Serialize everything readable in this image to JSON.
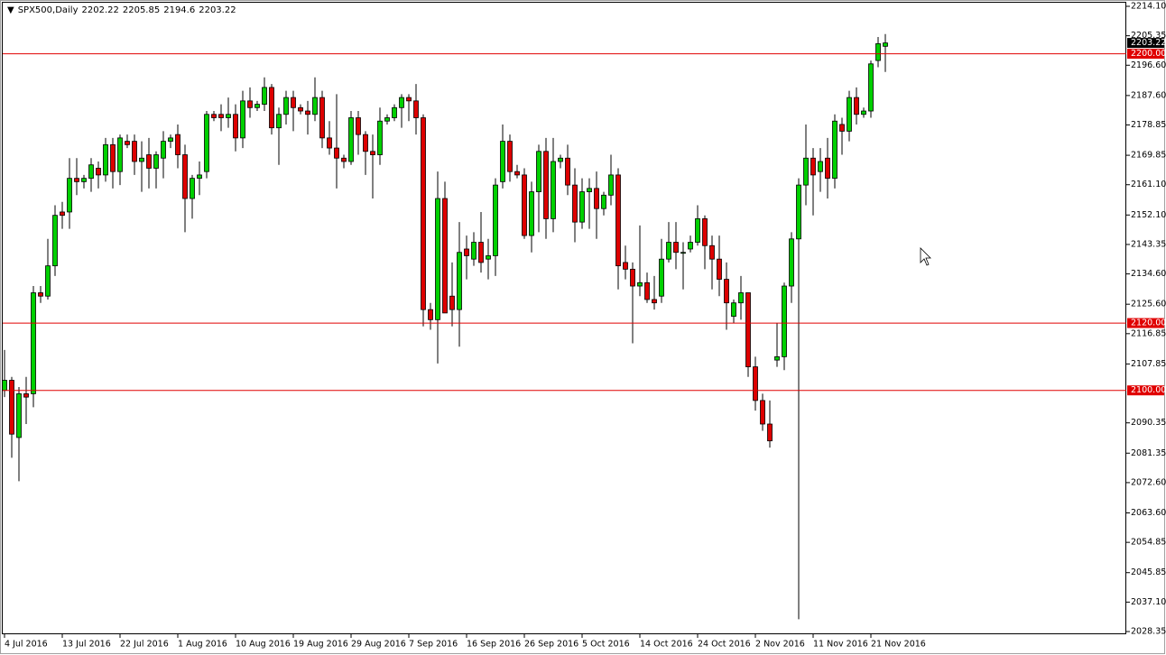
{
  "chart_data": {
    "type": "candlestick",
    "symbol": "SPX500,Daily",
    "categories": [
      "4 Jul 2016",
      null,
      null,
      null,
      null,
      null,
      null,
      null,
      "13 Jul 2016",
      null,
      null,
      null,
      null,
      null,
      null,
      null,
      "22 Jul 2016",
      null,
      null,
      null,
      null,
      null,
      null,
      null,
      "1 Aug 2016",
      null,
      null,
      null,
      null,
      null,
      null,
      null,
      "10 Aug 2016",
      null,
      null,
      null,
      null,
      null,
      null,
      null,
      "19 Aug 2016",
      null,
      null,
      null,
      null,
      null,
      null,
      null,
      "29 Aug 2016",
      null,
      null,
      null,
      null,
      null,
      null,
      null,
      "7 Sep 2016",
      null,
      null,
      null,
      null,
      null,
      null,
      null,
      "16 Sep 2016",
      null,
      null,
      null,
      null,
      null,
      null,
      null,
      "26 Sep 2016",
      null,
      null,
      null,
      null,
      null,
      null,
      null,
      "5 Oct 2016",
      null,
      null,
      null,
      null,
      null,
      null,
      null,
      "14 Oct 2016",
      null,
      null,
      null,
      null,
      null,
      null,
      null,
      "24 Oct 2016",
      null,
      null,
      null,
      null,
      null,
      null,
      null,
      "2 Nov 2016",
      null,
      null,
      null,
      null,
      null,
      null,
      null,
      "11 Nov 2016",
      null,
      null,
      null,
      null,
      null,
      null,
      null,
      "21 Nov 2016",
      null,
      null
    ],
    "open": [
      2100,
      2103,
      2086,
      2099,
      2099,
      2129,
      2128,
      2137,
      2153,
      2153,
      2163,
      2162,
      2163,
      2166,
      2164,
      2173,
      2165,
      2174,
      2174,
      2168,
      2170,
      2166,
      2169,
      2174,
      2176,
      2170,
      2157,
      2163,
      2165,
      2182,
      2182,
      2181,
      2182,
      2175,
      2186,
      2184,
      2185,
      2190,
      2178,
      2182,
      2187,
      2184,
      2183,
      2182,
      2187,
      2175,
      2172,
      2169,
      2168,
      2181,
      2176,
      2171,
      2170,
      2180,
      2181,
      2184,
      2187,
      2186,
      2181,
      2124,
      2121,
      2157,
      2128,
      2124,
      2142,
      2139,
      2144,
      2139,
      2140,
      2162,
      2174,
      2165,
      2164,
      2146,
      2159,
      2171,
      2151,
      2168,
      2169,
      2161,
      2150,
      2159,
      2160,
      2154,
      2158,
      2164,
      2138,
      2136,
      2131,
      2132,
      2127,
      2128,
      2139,
      2144,
      2141,
      2142,
      2144,
      2151,
      2143,
      2139,
      2133,
      2122,
      2126,
      2129,
      2107,
      2097,
      2090,
      2109,
      2110,
      2131,
      2145,
      2161,
      2169,
      2165,
      2169,
      2163,
      2179,
      2177,
      2187,
      2182,
      2183,
      2198,
      2202.22
    ],
    "high": [
      2112,
      2104,
      2101,
      2104,
      2131,
      2131,
      2145,
      2155,
      2156,
      2169,
      2169,
      2164,
      2169,
      2168,
      2175,
      2175,
      2176,
      2176,
      2176,
      2174,
      2175,
      2171,
      2177,
      2176,
      2179,
      2173,
      2164,
      2168,
      2183,
      2183,
      2185,
      2187,
      2185,
      2189,
      2190,
      2186,
      2193,
      2191,
      2184,
      2189,
      2189,
      2185,
      2186,
      2193,
      2189,
      2180,
      2188,
      2170,
      2183,
      2183,
      2177,
      2176,
      2184,
      2182,
      2185,
      2188,
      2188,
      2191,
      2182,
      2126,
      2165,
      2162,
      2138,
      2150,
      2146,
      2147,
      2153,
      2145,
      2163,
      2179,
      2176,
      2167,
      2166,
      2162,
      2173,
      2175,
      2175,
      2170,
      2173,
      2166,
      2163,
      2163,
      2165,
      2159,
      2170,
      2166,
      2143,
      2138,
      2149,
      2135,
      2134,
      2145,
      2150,
      2150,
      2144,
      2146,
      2155,
      2152,
      2146,
      2146,
      2138,
      2127,
      2134,
      2129,
      2110,
      2099,
      2097,
      2120,
      2132,
      2147,
      2163,
      2179,
      2172,
      2172,
      2175,
      2182,
      2181,
      2189,
      2190,
      2184,
      2198,
      2205,
      2205.85
    ],
    "low": [
      2098,
      2080,
      2073,
      2090,
      2095,
      2126,
      2127,
      2134,
      2148,
      2148,
      2158,
      2160,
      2159,
      2160,
      2162,
      2160,
      2161,
      2172,
      2164,
      2159,
      2160,
      2160,
      2163,
      2172,
      2166,
      2147,
      2151,
      2158,
      2163,
      2180,
      2177,
      2178,
      2171,
      2172,
      2181,
      2183,
      2183,
      2176,
      2167,
      2179,
      2177,
      2182,
      2176,
      2180,
      2172,
      2170,
      2160,
      2166,
      2167,
      2170,
      2164,
      2157,
      2167,
      2179,
      2180,
      2178,
      2180,
      2176,
      2119,
      2118,
      2108,
      2123,
      2119,
      2113,
      2133,
      2137,
      2135,
      2133,
      2134,
      2160,
      2162,
      2163,
      2145,
      2141,
      2147,
      2145,
      2147,
      2166,
      2158,
      2144,
      2148,
      2148,
      2145,
      2152,
      2155,
      2130,
      2133,
      2114,
      2128,
      2126,
      2124,
      2126,
      2138,
      2136,
      2130,
      2141,
      2143,
      2136,
      2130,
      2128,
      2118,
      2120,
      2121,
      2104,
      2094,
      2088,
      2083,
      2107,
      2106,
      2126,
      2032,
      2155,
      2152,
      2159,
      2157,
      2160,
      2170,
      2174,
      2179,
      2181,
      2181,
      2196,
      2194.6
    ],
    "close": [
      2103,
      2087,
      2099,
      2098,
      2129,
      2128,
      2137,
      2152,
      2152,
      2163,
      2162,
      2163,
      2167,
      2164,
      2173,
      2165,
      2175,
      2173,
      2168,
      2169,
      2166,
      2170,
      2174,
      2175,
      2170,
      2157,
      2163,
      2164,
      2182,
      2181,
      2181,
      2182,
      2175,
      2186,
      2184,
      2185,
      2190,
      2178,
      2182,
      2187,
      2184,
      2183,
      2182,
      2187,
      2175,
      2172,
      2169,
      2168,
      2181,
      2176,
      2171,
      2170,
      2180,
      2181,
      2184,
      2187,
      2186,
      2181,
      2124,
      2121,
      2157,
      2123,
      2124,
      2141,
      2140,
      2144,
      2138,
      2140,
      2161,
      2174,
      2165,
      2164,
      2146,
      2159,
      2171,
      2151,
      2168,
      2169,
      2161,
      2150,
      2159,
      2160,
      2154,
      2158,
      2164,
      2137,
      2136,
      2131,
      2132,
      2127,
      2126,
      2139,
      2144,
      2141,
      2141,
      2144,
      2151,
      2143,
      2139,
      2133,
      2126,
      2126,
      2129,
      2107,
      2097,
      2090,
      2085,
      2110,
      2131,
      2145,
      2161,
      2169,
      2164,
      2168,
      2163,
      2180,
      2177,
      2187,
      2182,
      2183,
      2197,
      2203,
      2203.22
    ],
    "up_color": "#00d000",
    "down_color": "#dd0000",
    "ylim": [
      2027.55,
      2215.44
    ],
    "yticks": [
      {
        "value": 2214.1,
        "label": "2214.10"
      },
      {
        "value": 2205.35,
        "label": "2205.35"
      },
      {
        "value": 2196.6,
        "label": "2196.60"
      },
      {
        "value": 2187.6,
        "label": "2187.60"
      },
      {
        "value": 2178.85,
        "label": "2178.85"
      },
      {
        "value": 2169.85,
        "label": "2169.85"
      },
      {
        "value": 2161.1,
        "label": "2161.10"
      },
      {
        "value": 2152.1,
        "label": "2152.10"
      },
      {
        "value": 2143.35,
        "label": "2143.35"
      },
      {
        "value": 2134.6,
        "label": "2134.60"
      },
      {
        "value": 2125.6,
        "label": "2125.60"
      },
      {
        "value": 2116.85,
        "label": "2116.85"
      },
      {
        "value": 2107.85,
        "label": "2107.85"
      },
      {
        "value": 2090.35,
        "label": "2090.35"
      },
      {
        "value": 2081.35,
        "label": "2081.35"
      },
      {
        "value": 2072.6,
        "label": "2072.60"
      },
      {
        "value": 2063.6,
        "label": "2063.60"
      },
      {
        "value": 2054.85,
        "label": "2054.85"
      },
      {
        "value": 2045.85,
        "label": "2045.85"
      },
      {
        "value": 2037.1,
        "label": "2037.10"
      },
      {
        "value": 2028.35,
        "label": "2028.35"
      }
    ],
    "hlines": [
      {
        "value": 2200,
        "label": "2200.00"
      },
      {
        "value": 2120,
        "label": "2120.00"
      },
      {
        "value": 2100,
        "label": "2100.00"
      }
    ],
    "hline_color": "#e00000"
  }
}
